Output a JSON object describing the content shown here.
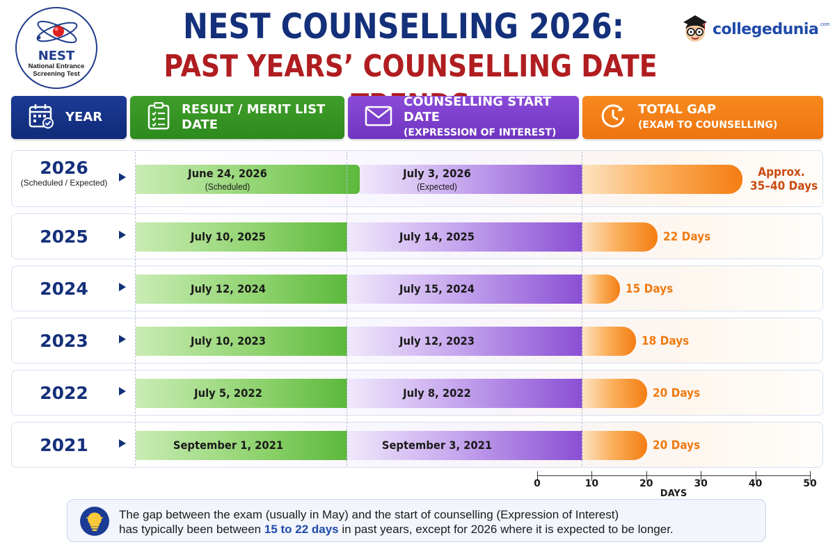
{
  "header": {
    "title_line1": "NEST COUNSELLING 2026:",
    "title_line2": "PAST YEARS’ COUNSELLING DATE TRENDS",
    "logo_left_text": "NEST",
    "logo_left_subtitle_line1": "National Entrance",
    "logo_left_subtitle_line2": "Screening Test",
    "brand_name": "collegedunia",
    "brand_suffix": ".com"
  },
  "columns": {
    "year": "YEAR",
    "result": "RESULT / MERIT LIST DATE",
    "counselling_line1": "COUNSELLING START DATE",
    "counselling_line2": "(EXPRESSION OF INTEREST)",
    "gap_line1": "TOTAL GAP",
    "gap_line2": "(EXAM TO COUNSELLING)"
  },
  "colors": {
    "navy": "#14307a",
    "green": "#3f9e2a",
    "purple": "#7a3ec9",
    "orange": "#ef7a12",
    "red": "#b01d20"
  },
  "chart_data": {
    "type": "bar",
    "xlabel": "DAYS",
    "xlim": [
      0,
      50
    ],
    "xticks": [
      "0",
      "10",
      "20",
      "30",
      "40",
      "50"
    ],
    "rows": [
      {
        "year": "2026",
        "year_note": "(Scheduled / Expected)",
        "result_date": "June 24, 2026",
        "result_note": "(Scheduled)",
        "counselling_date": "July 3, 2026",
        "counselling_note": "(Expected)",
        "gap_days": 37.5,
        "gap_label_line1": "Approx.",
        "gap_label_line2": "35–40 Days"
      },
      {
        "year": "2025",
        "year_note": "",
        "result_date": "July 10, 2025",
        "result_note": "",
        "counselling_date": "July 14, 2025",
        "counselling_note": "",
        "gap_days": 22,
        "gap_label_line1": "22 Days",
        "gap_label_line2": ""
      },
      {
        "year": "2024",
        "year_note": "",
        "result_date": "July 12, 2024",
        "result_note": "",
        "counselling_date": "July 15, 2024",
        "counselling_note": "",
        "gap_days": 15,
        "gap_label_line1": "15 Days",
        "gap_label_line2": ""
      },
      {
        "year": "2023",
        "year_note": "",
        "result_date": "July 10, 2023",
        "result_note": "",
        "counselling_date": "July 12, 2023",
        "counselling_note": "",
        "gap_days": 18,
        "gap_label_line1": "18 Days",
        "gap_label_line2": ""
      },
      {
        "year": "2022",
        "year_note": "",
        "result_date": "July 5, 2022",
        "result_note": "",
        "counselling_date": "July 8, 2022",
        "counselling_note": "",
        "gap_days": 20,
        "gap_label_line1": "20 Days",
        "gap_label_line2": ""
      },
      {
        "year": "2021",
        "year_note": "",
        "result_date": "September 1, 2021",
        "result_note": "",
        "counselling_date": "September 3, 2021",
        "counselling_note": "",
        "gap_days": 20,
        "gap_label_line1": "20 Days",
        "gap_label_line2": ""
      }
    ]
  },
  "note": {
    "line1": "The gap between the exam (usually in May) and the start of counselling (Expression of Interest)",
    "line2_pre": "has typically been between ",
    "line2_highlight": "15 to 22 days",
    "line2_post": " in past years, except for 2026 where it is expected to be longer."
  }
}
